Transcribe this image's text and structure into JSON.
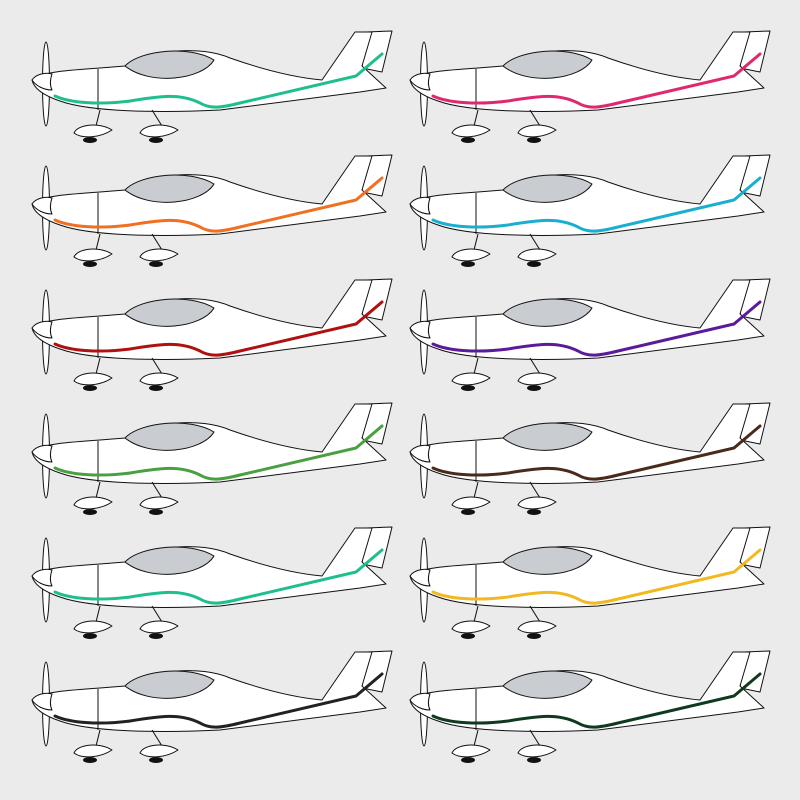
{
  "planes": [
    {
      "stripe": "#1dbf8e"
    },
    {
      "stripe": "#e0286e"
    },
    {
      "stripe": "#f07020"
    },
    {
      "stripe": "#1aaed0"
    },
    {
      "stripe": "#b01010"
    },
    {
      "stripe": "#5a1a9a"
    },
    {
      "stripe": "#4aa040"
    },
    {
      "stripe": "#4a2a1a"
    },
    {
      "stripe": "#1dbf8e"
    },
    {
      "stripe": "#f2b820"
    },
    {
      "stripe": "#222222"
    },
    {
      "stripe": "#103a20"
    }
  ]
}
